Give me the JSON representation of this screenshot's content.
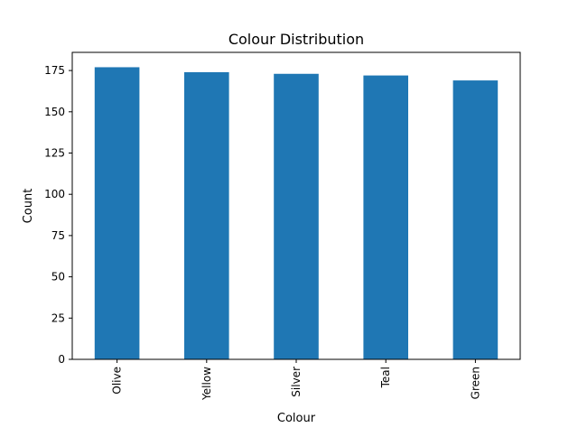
{
  "chart_data": {
    "type": "bar",
    "title": "Colour Distribution",
    "xlabel": "Colour",
    "ylabel": "Count",
    "categories": [
      "Olive",
      "Yellow",
      "Silver",
      "Teal",
      "Green"
    ],
    "values": [
      177,
      174,
      173,
      172,
      169
    ],
    "ylim": [
      0,
      186
    ],
    "yticks": [
      0,
      25,
      50,
      75,
      100,
      125,
      150,
      175
    ],
    "bar_color": "#1f77b4",
    "grid": false,
    "legend": false
  }
}
